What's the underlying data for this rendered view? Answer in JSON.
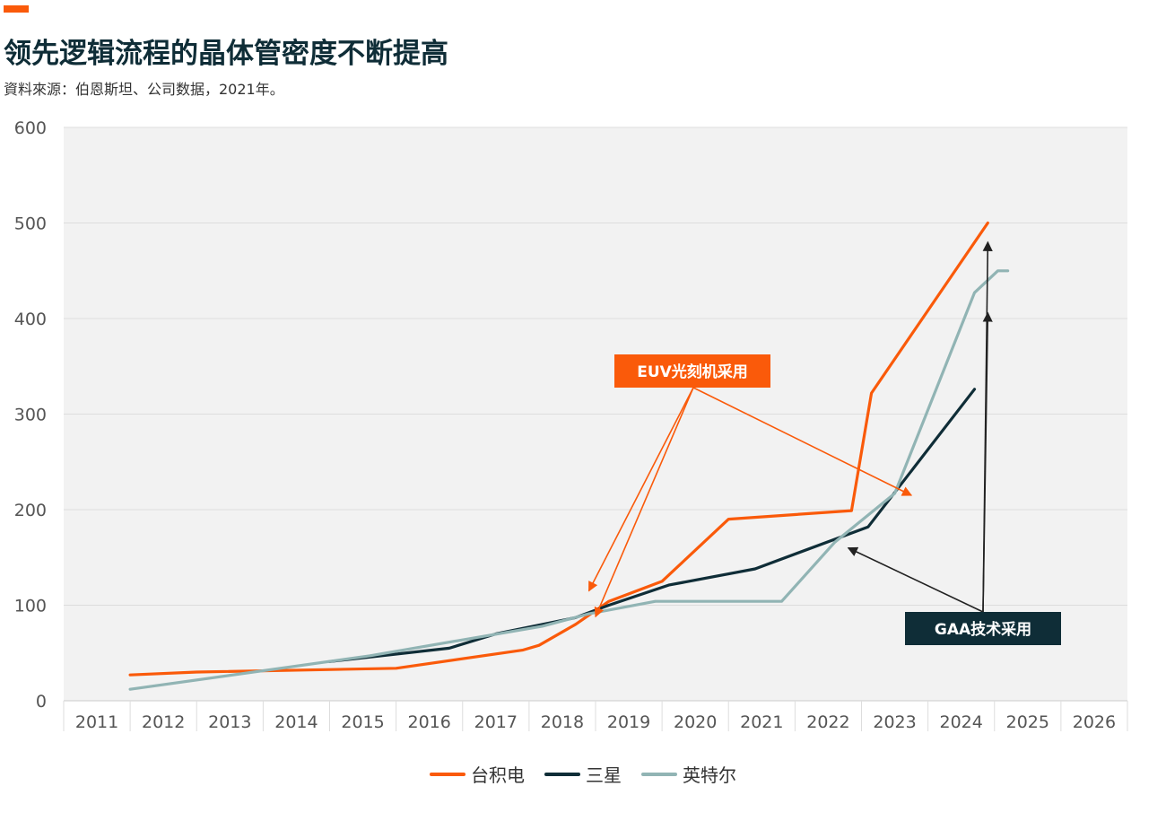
{
  "header": {
    "title": "领先逻辑流程的晶体管密度不断提高",
    "subtitle": "資料來源：伯恩斯坦、公司数据，2021年。"
  },
  "colors": {
    "accent": "#fa5a0a",
    "tsmc": "#fa5a0a",
    "samsung": "#0f2d37",
    "intel": "#91b4b4",
    "plot_bg": "#f2f2f2",
    "grid": "#dddddd"
  },
  "chart_data": {
    "type": "line",
    "categories": [
      "2011",
      "2012",
      "2013",
      "2014",
      "2015",
      "2016",
      "2017",
      "2018",
      "2019",
      "2020",
      "2021",
      "2022",
      "2023",
      "2024",
      "2025",
      "2026"
    ],
    "ylim": [
      0,
      600
    ],
    "yticks": [
      "0",
      "100",
      "200",
      "300",
      "400",
      "500",
      "600"
    ],
    "grid": true,
    "legend_position": "bottom",
    "series": [
      {
        "name": "台积电",
        "color_key": "tsmc",
        "points": [
          [
            2011.5,
            27
          ],
          [
            2012.5,
            30
          ],
          [
            2015.5,
            34
          ],
          [
            2017.4,
            53
          ],
          [
            2017.65,
            58
          ],
          [
            2018.2,
            80
          ],
          [
            2018.7,
            104
          ],
          [
            2019.5,
            125
          ],
          [
            2020.5,
            190
          ],
          [
            2022.35,
            199
          ],
          [
            2022.65,
            322
          ],
          [
            2024.4,
            500
          ]
        ]
      },
      {
        "name": "三星",
        "color_key": "samsung",
        "points": [
          [
            2014.5,
            41
          ],
          [
            2016.3,
            55
          ],
          [
            2017.0,
            70
          ],
          [
            2018.2,
            87
          ],
          [
            2018.7,
            100
          ],
          [
            2019.6,
            121
          ],
          [
            2020.9,
            138
          ],
          [
            2022.6,
            182
          ],
          [
            2024.2,
            326
          ]
        ]
      },
      {
        "name": "英特尔",
        "color_key": "intel",
        "points": [
          [
            2011.5,
            12
          ],
          [
            2015.1,
            47
          ],
          [
            2017.7,
            78
          ],
          [
            2018.4,
            91
          ],
          [
            2019.4,
            104
          ],
          [
            2020.4,
            104
          ],
          [
            2021.3,
            104
          ],
          [
            2022.1,
            166
          ],
          [
            2023.0,
            217
          ],
          [
            2024.2,
            427
          ],
          [
            2024.55,
            450
          ],
          [
            2024.7,
            450
          ]
        ]
      }
    ],
    "annotations": [
      {
        "text": "EUV光刻机采用",
        "style": "orange-box",
        "arrows": [
          [
            2018.4,
            115
          ],
          [
            2018.5,
            88
          ],
          [
            2023.25,
            215
          ]
        ]
      },
      {
        "text": "GAA技术采用",
        "style": "dark-box",
        "arrows": [
          [
            2022.3,
            160
          ],
          [
            2024.4,
            480
          ],
          [
            2024.4,
            406
          ]
        ]
      }
    ]
  }
}
